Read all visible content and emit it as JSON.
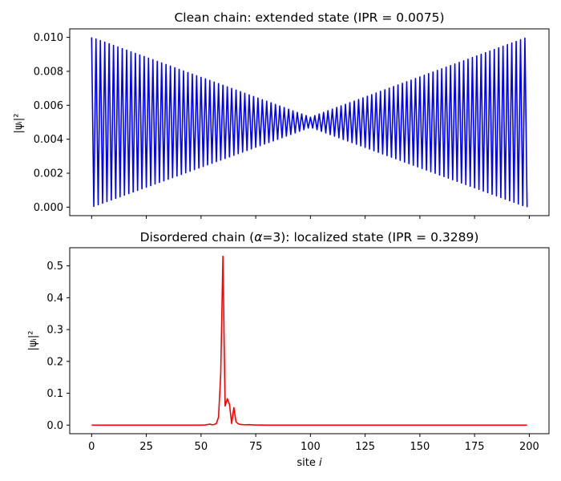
{
  "chart_data": [
    {
      "type": "line",
      "title_parts": [
        "Clean chain: extended state (IPR = 0.0075)"
      ],
      "xlabel": "",
      "ylabel": "|ψᵢ|²",
      "color": "#0000ff",
      "xlim": [
        -10,
        209
      ],
      "ylim": [
        -0.0005,
        0.0105
      ],
      "xticks": [
        0,
        25,
        50,
        75,
        100,
        125,
        150,
        175,
        200
      ],
      "xtick_labels_visible": false,
      "yticks": [
        0.0,
        0.002,
        0.004,
        0.006,
        0.008,
        0.01
      ],
      "ytick_labels": [
        "0.000",
        "0.002",
        "0.004",
        "0.006",
        "0.008",
        "0.010"
      ],
      "grid": false,
      "series": [
        {
          "style": "alternating",
          "n_sites": 200,
          "high_envelope": [
            [
              0,
              0.01
            ],
            [
              100,
              0.0053
            ],
            [
              199,
              0.01
            ]
          ],
          "low_envelope": [
            [
              0,
              0.0
            ],
            [
              100,
              0.0047
            ],
            [
              199,
              0.0
            ]
          ]
        }
      ]
    },
    {
      "type": "line",
      "title_parts": [
        "Disordered chain (",
        "α",
        "=3): localized state (IPR = 0.3289)"
      ],
      "xlabel_parts": [
        "site ",
        "i"
      ],
      "ylabel": "|ψᵢ|²",
      "color": "#ff0000",
      "xlim": [
        -10,
        209
      ],
      "ylim": [
        -0.027,
        0.557
      ],
      "xticks": [
        0,
        25,
        50,
        75,
        100,
        125,
        150,
        175,
        200
      ],
      "xtick_labels": [
        "0",
        "25",
        "50",
        "75",
        "100",
        "125",
        "150",
        "175",
        "200"
      ],
      "yticks": [
        0.0,
        0.1,
        0.2,
        0.3,
        0.4,
        0.5
      ],
      "ytick_labels": [
        "0.0",
        "0.1",
        "0.2",
        "0.3",
        "0.4",
        "0.5"
      ],
      "grid": false,
      "series": [
        {
          "style": "points",
          "points": [
            [
              0,
              0.0
            ],
            [
              50,
              0.0
            ],
            [
              52,
              0.0005
            ],
            [
              53,
              0.002
            ],
            [
              54,
              0.003
            ],
            [
              55,
              0.001
            ],
            [
              56,
              0.002
            ],
            [
              57,
              0.005
            ],
            [
              58,
              0.025
            ],
            [
              59,
              0.16
            ],
            [
              60,
              0.53
            ],
            [
              61,
              0.06
            ],
            [
              62,
              0.083
            ],
            [
              63,
              0.065
            ],
            [
              64,
              0.005
            ],
            [
              65,
              0.055
            ],
            [
              66,
              0.01
            ],
            [
              67,
              0.004
            ],
            [
              68,
              0.002
            ],
            [
              70,
              0.001
            ],
            [
              72,
              0.0015
            ],
            [
              74,
              0.0005
            ],
            [
              80,
              0.0
            ],
            [
              199,
              0.0
            ]
          ]
        }
      ]
    }
  ]
}
